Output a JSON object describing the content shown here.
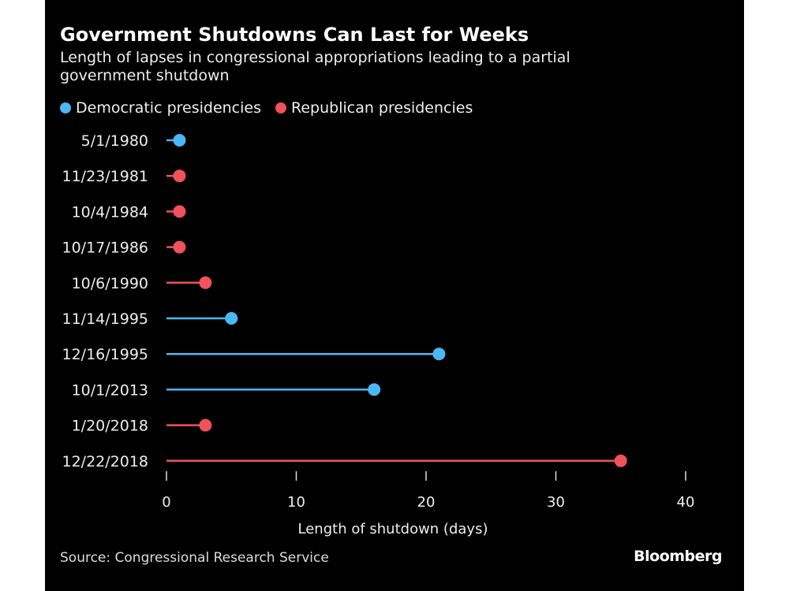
{
  "chart_data": {
    "type": "lollipop",
    "title": "Government Shutdowns Can Last for Weeks",
    "subtitle": "Length of lapses in congressional appropriations leading to a partial government shutdown",
    "xlabel": "Length of shutdown (days)",
    "xlim": [
      0,
      40
    ],
    "xticks": [
      0,
      10,
      20,
      30,
      40
    ],
    "grid": false,
    "legend_placement": "top-left",
    "legend": [
      {
        "name": "Democratic presidencies",
        "party": "D",
        "color": "#4bb8f5"
      },
      {
        "name": "Republican presidencies",
        "party": "R",
        "color": "#f0515c"
      }
    ],
    "categories": [
      "5/1/1980",
      "11/23/1981",
      "10/4/1984",
      "10/17/1986",
      "10/6/1990",
      "11/14/1995",
      "12/16/1995",
      "10/1/2013",
      "1/20/2018",
      "12/22/2018"
    ],
    "values": [
      1,
      1,
      1,
      1,
      3,
      5,
      21,
      16,
      3,
      35
    ],
    "party": [
      "D",
      "R",
      "R",
      "R",
      "R",
      "D",
      "D",
      "D",
      "R",
      "R"
    ]
  },
  "source": "Source: Congressional Research Service",
  "logo": "Bloomberg"
}
